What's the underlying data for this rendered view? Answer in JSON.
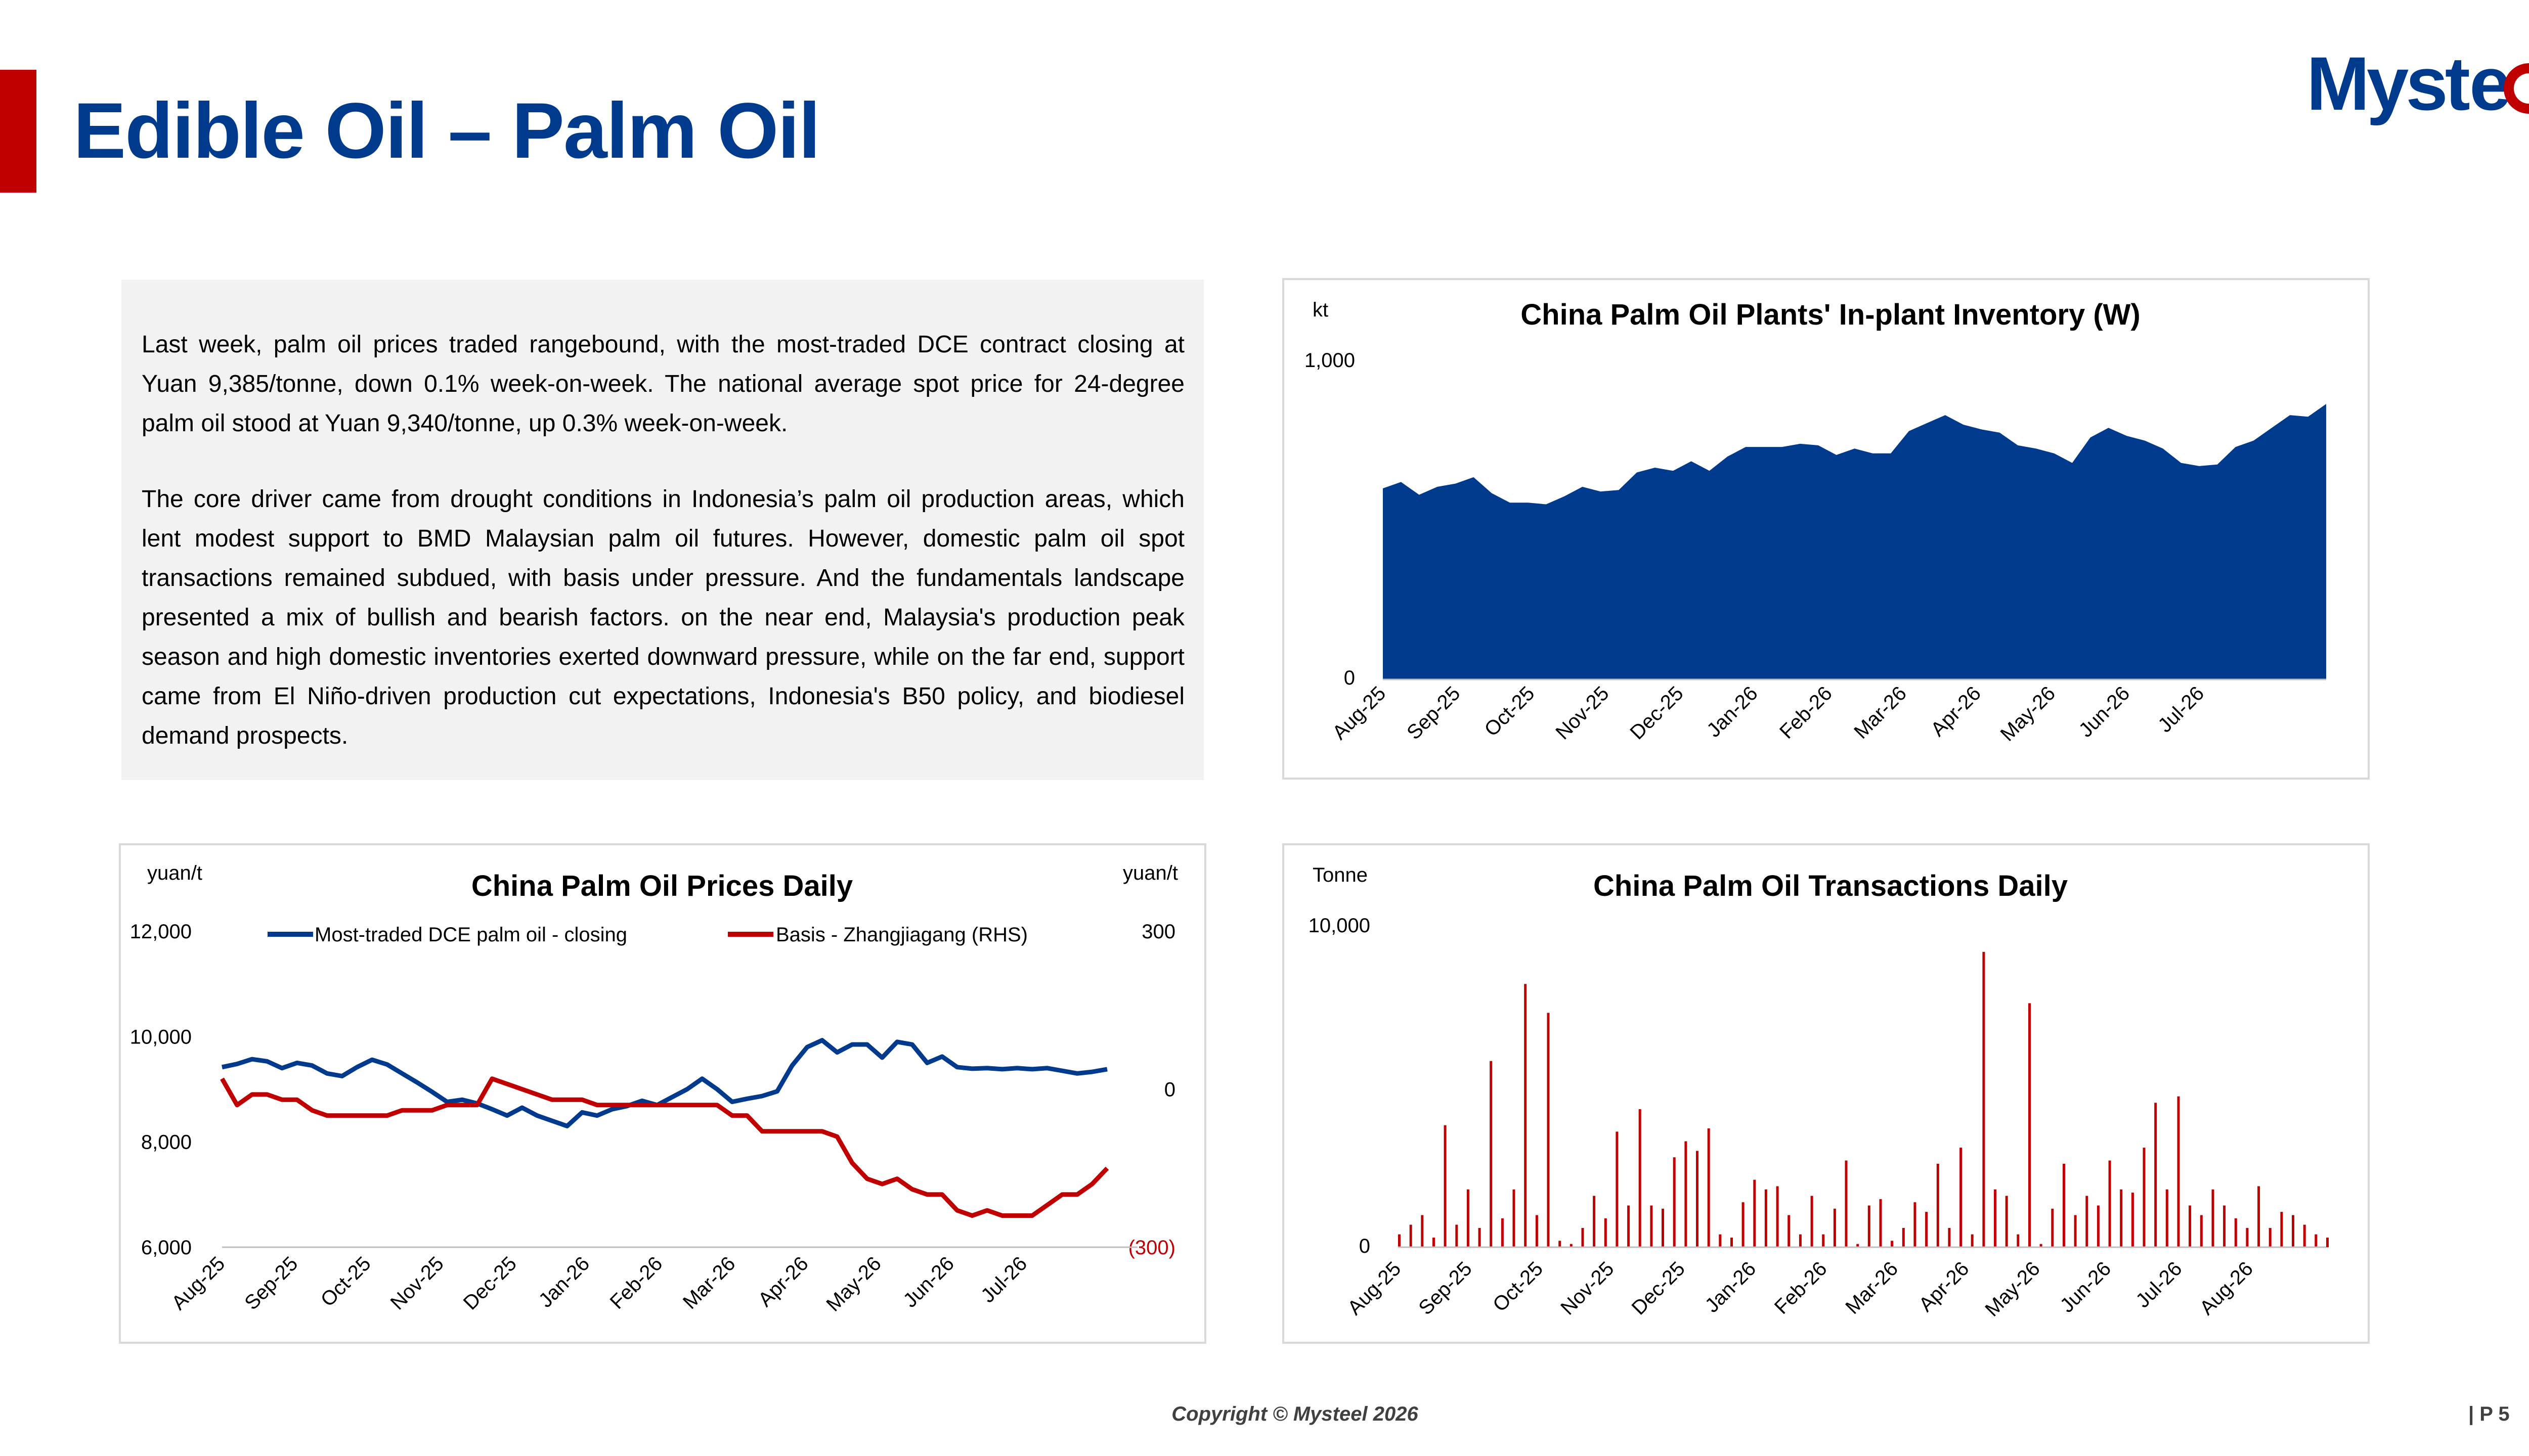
{
  "header": {
    "title": "Edible Oil – Palm Oil",
    "logo_text": "Mysteel",
    "accent_color": "#c00000",
    "brand_color": "#003a8c"
  },
  "commentary": {
    "paragraphs": [
      "Last week, palm oil prices traded rangebound, with the most-traded DCE contract closing at Yuan 9,385/tonne, down 0.1% week-on-week. The national average spot price for 24-degree palm oil stood at Yuan 9,340/tonne, up 0.3% week-on-week.",
      "The core driver came from drought conditions in Indonesia’s palm oil production areas, which lent modest support to BMD Malaysian palm oil futures. However, domestic palm oil spot transactions remained subdued, with basis under pressure. And the fundamentals landscape presented a mix of bullish and bearish factors. on the near end, Malaysia's production peak season and high domestic inventories exerted downward pressure, while on the far end, support came from El Niño-driven production cut expectations, Indonesia's B50 policy, and biodiesel demand prospects."
    ]
  },
  "footer": {
    "copyright": "Copyright © Mysteel 2026",
    "page": "| P 5"
  },
  "chart_data": [
    {
      "id": "inventory",
      "type": "area",
      "title": "China Palm Oil Plants' In-plant Inventory (W)",
      "ylabel": "kt",
      "ylim": [
        0,
        1000
      ],
      "yticks": [
        "0",
        "1,000"
      ],
      "x_labels": [
        "Aug-25",
        "Sep-25",
        "Oct-25",
        "Nov-25",
        "Dec-25",
        "Jan-26",
        "Feb-26",
        "Mar-26",
        "Apr-26",
        "May-26",
        "Jun-26",
        "Jul-26"
      ],
      "color": "#003a8c",
      "values": [
        600,
        620,
        580,
        605,
        615,
        635,
        585,
        555,
        555,
        550,
        575,
        605,
        590,
        595,
        650,
        665,
        655,
        685,
        655,
        700,
        730,
        730,
        730,
        740,
        735,
        705,
        725,
        710,
        710,
        780,
        805,
        830,
        800,
        785,
        775,
        735,
        725,
        710,
        680,
        760,
        790,
        765,
        750,
        725,
        680,
        670,
        675,
        730,
        750,
        790,
        830,
        825,
        865
      ]
    },
    {
      "id": "prices",
      "type": "line",
      "title": "China Palm Oil Prices Daily",
      "ylabel_left": "yuan/t",
      "ylabel_right": "yuan/t",
      "ylim_left": [
        6000,
        12000
      ],
      "ylim_right": [
        -300,
        300
      ],
      "yticks_left": [
        "6,000",
        "8,000",
        "10,000",
        "12,000"
      ],
      "yticks_right": [
        "(300)",
        "0",
        "300"
      ],
      "x_labels": [
        "Aug-25",
        "Sep-25",
        "Oct-25",
        "Nov-25",
        "Dec-25",
        "Jan-26",
        "Feb-26",
        "Mar-26",
        "Apr-26",
        "May-26",
        "Jun-26",
        "Jul-26"
      ],
      "legend": "top",
      "series": [
        {
          "name": "Most-traded DCE palm oil - closing",
          "axis": "left",
          "color": "#003a8c",
          "values": [
            9420,
            9480,
            9570,
            9530,
            9400,
            9500,
            9450,
            9300,
            9250,
            9420,
            9560,
            9470,
            9300,
            9130,
            8950,
            8760,
            8800,
            8730,
            8620,
            8500,
            8650,
            8500,
            8400,
            8300,
            8560,
            8500,
            8620,
            8680,
            8780,
            8700,
            8850,
            9000,
            9200,
            9000,
            8760,
            8820,
            8870,
            8960,
            9450,
            9800,
            9930,
            9700,
            9850,
            9850,
            9600,
            9900,
            9850,
            9500,
            9620,
            9420,
            9390,
            9400,
            9380,
            9400,
            9380,
            9400,
            9350,
            9300,
            9330,
            9380
          ]
        },
        {
          "name": "Basis - Zhangjiagang (RHS)",
          "axis": "right",
          "color": "#c00000",
          "values": [
            20,
            -30,
            -10,
            -10,
            -20,
            -20,
            -40,
            -50,
            -50,
            -50,
            -50,
            -50,
            -40,
            -40,
            -40,
            -30,
            -30,
            -30,
            20,
            10,
            0,
            -10,
            -20,
            -20,
            -20,
            -30,
            -30,
            -30,
            -30,
            -30,
            -30,
            -30,
            -30,
            -30,
            -50,
            -50,
            -80,
            -80,
            -80,
            -80,
            -80,
            -90,
            -140,
            -170,
            -180,
            -170,
            -190,
            -200,
            -200,
            -230,
            -240,
            -230,
            -240,
            -240,
            -240,
            -220,
            -200,
            -200,
            -180,
            -150
          ]
        }
      ]
    },
    {
      "id": "transactions",
      "type": "bar",
      "title": "China Palm Oil Transactions Daily",
      "ylabel": "Tonne",
      "ylim": [
        0,
        10000
      ],
      "yticks": [
        "0",
        "10,000"
      ],
      "x_labels": [
        "Aug-25",
        "Sep-25",
        "Oct-25",
        "Nov-25",
        "Dec-25",
        "Jan-26",
        "Feb-26",
        "Mar-26",
        "Apr-26",
        "May-26",
        "Jun-26",
        "Jul-26",
        "Aug-26"
      ],
      "color": "#c00000",
      "values": [
        400,
        700,
        1000,
        300,
        3800,
        700,
        1800,
        600,
        5800,
        900,
        1800,
        8200,
        1000,
        7300,
        200,
        100,
        600,
        1600,
        900,
        3600,
        1300,
        4300,
        1300,
        1200,
        2800,
        3300,
        3000,
        3700,
        400,
        300,
        1400,
        2100,
        1800,
        1900,
        1000,
        400,
        1600,
        400,
        1200,
        2700,
        100,
        1300,
        1500,
        200,
        600,
        1400,
        1100,
        2600,
        600,
        3100,
        400,
        9200,
        1800,
        1600,
        400,
        7600,
        100,
        1200,
        2600,
        1000,
        1600,
        1300,
        2700,
        1800,
        1700,
        3100,
        4500,
        1800,
        4700,
        1300,
        1000,
        1800,
        1300,
        900,
        600,
        1900,
        600,
        1100,
        1000,
        700,
        400,
        300
      ]
    }
  ]
}
